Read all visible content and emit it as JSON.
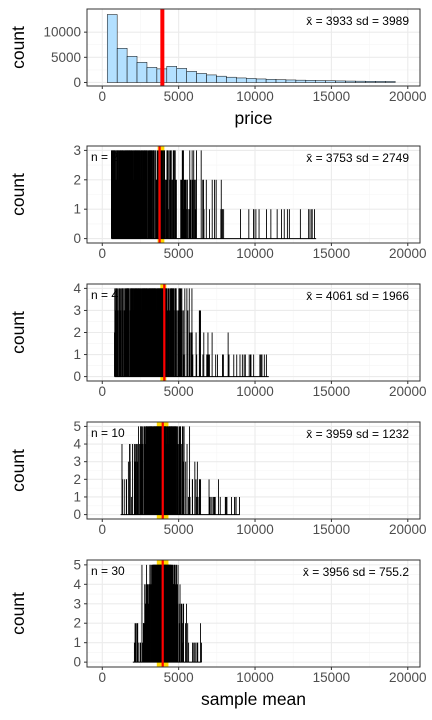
{
  "colors": {
    "background": "#ffffff",
    "panel_border": "#333333",
    "grid_major": "#ebebeb",
    "grid_minor": "#f5f5f5",
    "tick_text": "#4d4d4d",
    "hist_fill": "#b3e0ff",
    "hist_stroke": "#000000",
    "mean_line": "#ff0000",
    "band_fill": "#ffd700"
  },
  "chart_data": [
    {
      "type": "bar",
      "title": "",
      "xlabel": "price",
      "ylabel": "count",
      "xlim": [
        -1000,
        20800
      ],
      "ylim": [
        -700,
        14600
      ],
      "x_ticks": [
        0,
        5000,
        10000,
        15000,
        20000
      ],
      "x_tick_labels": [
        "0",
        "5000",
        "10000",
        "15000",
        "20000"
      ],
      "y_ticks": [
        0,
        5000,
        10000
      ],
      "y_tick_labels": [
        "0",
        "5000",
        "10000"
      ],
      "bin_width": 650,
      "bins": [
        {
          "x": 650,
          "count": 13500
        },
        {
          "x": 1300,
          "count": 6800
        },
        {
          "x": 1950,
          "count": 5200
        },
        {
          "x": 2600,
          "count": 4000
        },
        {
          "x": 3250,
          "count": 3000
        },
        {
          "x": 3900,
          "count": 2700
        },
        {
          "x": 4550,
          "count": 3200
        },
        {
          "x": 5200,
          "count": 2800
        },
        {
          "x": 5850,
          "count": 2200
        },
        {
          "x": 6500,
          "count": 1800
        },
        {
          "x": 7150,
          "count": 1500
        },
        {
          "x": 7800,
          "count": 1250
        },
        {
          "x": 8450,
          "count": 1050
        },
        {
          "x": 9100,
          "count": 900
        },
        {
          "x": 9750,
          "count": 800
        },
        {
          "x": 10400,
          "count": 700
        },
        {
          "x": 11050,
          "count": 620
        },
        {
          "x": 11700,
          "count": 560
        },
        {
          "x": 12350,
          "count": 500
        },
        {
          "x": 13000,
          "count": 460
        },
        {
          "x": 13650,
          "count": 420
        },
        {
          "x": 14300,
          "count": 380
        },
        {
          "x": 14950,
          "count": 340
        },
        {
          "x": 15600,
          "count": 310
        },
        {
          "x": 16250,
          "count": 280
        },
        {
          "x": 16900,
          "count": 260
        },
        {
          "x": 17550,
          "count": 240
        },
        {
          "x": 18200,
          "count": 220
        },
        {
          "x": 18850,
          "count": 200
        }
      ],
      "mean_line": 3933,
      "stats": {
        "mean_label": "x̄ = 3933",
        "sd_label": "sd = 3989"
      }
    },
    {
      "type": "bar",
      "n_label": "n = 2",
      "xlabel": "",
      "ylabel": "count",
      "xlim": [
        -1000,
        20800
      ],
      "ylim": [
        -0.15,
        3.15
      ],
      "x_ticks": [
        0,
        5000,
        10000,
        15000,
        20000
      ],
      "x_tick_labels": [
        "0",
        "5000",
        "10000",
        "15000",
        "20000"
      ],
      "y_ticks": [
        0,
        1,
        2,
        3
      ],
      "y_tick_labels": [
        "0",
        "1",
        "2",
        "3"
      ],
      "sample_range": [
        600,
        14000
      ],
      "peak": 1900,
      "spread": 2800,
      "max_count": 3,
      "mean_line": 3753,
      "band": [
        3753,
        3933
      ],
      "stats": {
        "mean_label": "x̄ = 3753",
        "sd_label": "sd = 2749"
      }
    },
    {
      "type": "bar",
      "n_label": "n = 4",
      "xlabel": "",
      "ylabel": "count",
      "xlim": [
        -1000,
        20800
      ],
      "ylim": [
        -0.2,
        4.2
      ],
      "x_ticks": [
        0,
        5000,
        10000,
        15000,
        20000
      ],
      "x_tick_labels": [
        "0",
        "5000",
        "10000",
        "15000",
        "20000"
      ],
      "y_ticks": [
        0,
        1,
        2,
        3,
        4
      ],
      "y_tick_labels": [
        "0",
        "1",
        "2",
        "3",
        "4"
      ],
      "sample_range": [
        800,
        10900
      ],
      "peak": 3000,
      "spread": 2000,
      "max_count": 4,
      "mean_line": 4061,
      "band": [
        3933,
        4061
      ],
      "stats": {
        "mean_label": "x̄ = 4061",
        "sd_label": "sd = 1966"
      }
    },
    {
      "type": "bar",
      "n_label": "n = 10",
      "xlabel": "",
      "ylabel": "count",
      "xlim": [
        -1000,
        20800
      ],
      "ylim": [
        -0.25,
        5.25
      ],
      "x_ticks": [
        0,
        5000,
        10000,
        15000,
        20000
      ],
      "x_tick_labels": [
        "0",
        "5000",
        "10000",
        "15000",
        "20000"
      ],
      "y_ticks": [
        0,
        1,
        2,
        3,
        4,
        5
      ],
      "y_tick_labels": [
        "0",
        "1",
        "2",
        "3",
        "4",
        "5"
      ],
      "sample_range": [
        1200,
        9000
      ],
      "peak": 3800,
      "spread": 1250,
      "max_count": 5,
      "mean_line": 3959,
      "band": [
        3700,
        4200
      ],
      "stats": {
        "mean_label": "x̄ = 3959",
        "sd_label": "sd = 1232"
      }
    },
    {
      "type": "bar",
      "n_label": "n = 30",
      "xlabel": "sample mean",
      "ylabel": "count",
      "xlim": [
        -1000,
        20800
      ],
      "ylim": [
        -0.25,
        5.25
      ],
      "x_ticks": [
        0,
        5000,
        10000,
        15000,
        20000
      ],
      "x_tick_labels": [
        "0",
        "5000",
        "10000",
        "15000",
        "20000"
      ],
      "y_ticks": [
        0,
        1,
        2,
        3,
        4,
        5
      ],
      "y_tick_labels": [
        "0",
        "1",
        "2",
        "3",
        "4",
        "5"
      ],
      "sample_range": [
        2000,
        6500
      ],
      "peak": 3950,
      "spread": 760,
      "max_count": 5,
      "mean_line": 3956,
      "band": [
        3700,
        4200
      ],
      "stats": {
        "mean_label": "x̄ = 3956",
        "sd_label": "sd = 755.2"
      }
    }
  ]
}
